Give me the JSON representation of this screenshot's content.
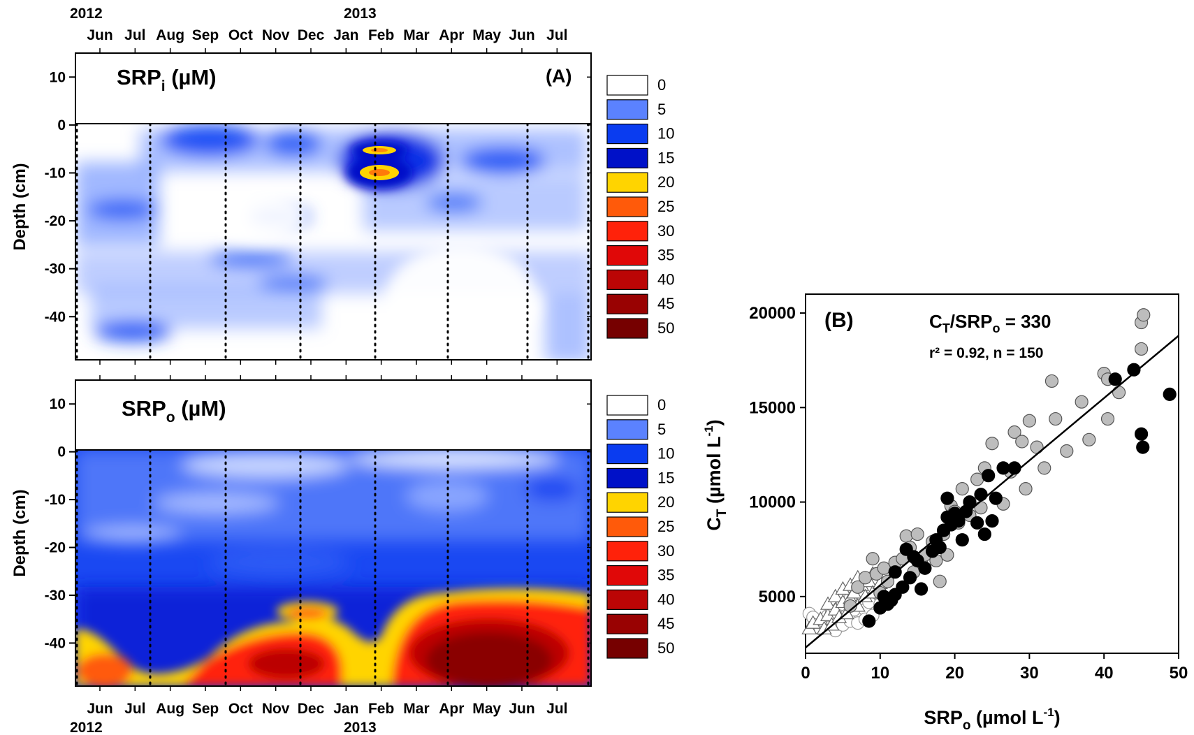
{
  "chart_data": [
    {
      "type": "heatmap",
      "panel": "(A)",
      "title_main": "SRP",
      "title_sub": "i",
      "title_tail": " (µM)",
      "panel_label": "(A)",
      "ylabel": "Depth (cm)",
      "ylim": [
        -49,
        15
      ],
      "yticks": [
        10,
        0,
        -10,
        -20,
        -30,
        -40
      ],
      "top_year_labels": [
        "2012",
        "2013"
      ],
      "months": [
        "Jun",
        "Jul",
        "Aug",
        "Sep",
        "Oct",
        "Nov",
        "Dec",
        "Jan",
        "Feb",
        "Mar",
        "Apr",
        "May",
        "Jun",
        "Jul"
      ],
      "sampling_dates_index": [
        0,
        2,
        4,
        6,
        8,
        10,
        12,
        13.5
      ],
      "colorbar": {
        "levels": [
          0,
          5,
          10,
          15,
          20,
          25,
          30,
          35,
          40,
          45,
          50
        ],
        "colors": [
          "#ffffff",
          "#5b82ff",
          "#0a3cf0",
          "#0011c8",
          "#ffd400",
          "#ff5a0a",
          "#ff220a",
          "#e00808",
          "#bb0505",
          "#990202",
          "#760000"
        ]
      },
      "features": [
        {
          "description_value_uM": 22,
          "date": "Jan 2013",
          "depth_cm": -5
        },
        {
          "description_value_uM": 20,
          "date": "Jan 2013",
          "depth_cm": -10
        }
      ]
    },
    {
      "type": "heatmap",
      "panel": "SRPo",
      "title_main": "SRP",
      "title_sub": "o",
      "title_tail": " (µM)",
      "ylabel": "Depth (cm)",
      "ylim": [
        -49,
        15
      ],
      "yticks": [
        10,
        0,
        -10,
        -20,
        -30,
        -40
      ],
      "bottom_year_labels": [
        "2012",
        "2013"
      ],
      "months": [
        "Jun",
        "Jul",
        "Aug",
        "Sep",
        "Oct",
        "Nov",
        "Dec",
        "Jan",
        "Feb",
        "Mar",
        "Apr",
        "May",
        "Jun",
        "Jul"
      ],
      "colorbar": {
        "levels": [
          0,
          5,
          10,
          15,
          20,
          25,
          30,
          35,
          40,
          45,
          50
        ],
        "colors": [
          "#ffffff",
          "#5b82ff",
          "#0a3cf0",
          "#0011c8",
          "#ffd400",
          "#ff5a0a",
          "#ff220a",
          "#e00808",
          "#bb0505",
          "#990202",
          "#760000"
        ]
      }
    },
    {
      "type": "scatter",
      "panel_label": "(B)",
      "equation_main": "C",
      "equation_sub1": "T",
      "equation_mid": "/SRP",
      "equation_sub2": "o",
      "equation_tail": " = 330",
      "stats": "r² = 0.92, n = 150",
      "xlabel_main": "SRP",
      "xlabel_sub": "o",
      "xlabel_tail": " (µmol L",
      "xlabel_sup": "-1",
      "xlabel_close": ")",
      "ylabel_main": "C",
      "ylabel_sub": "T",
      "ylabel_tail": " (µmol L",
      "ylabel_sup": "-1",
      "ylabel_close": ")",
      "xlim": [
        0,
        50
      ],
      "ylim": [
        2000,
        21000
      ],
      "xticks": [
        0,
        10,
        20,
        30,
        40,
        50
      ],
      "yticks": [
        5000,
        10000,
        15000,
        20000
      ],
      "fit_line": {
        "slope": 330,
        "intercept": 2300,
        "x_range": [
          0,
          50
        ]
      },
      "series": [
        {
          "marker": "circle-black",
          "points": [
            [
              8.5,
              3700
            ],
            [
              10,
              4400
            ],
            [
              10.5,
              5000
            ],
            [
              11,
              4600
            ],
            [
              11.5,
              4800
            ],
            [
              12,
              5100
            ],
            [
              12,
              6300
            ],
            [
              13,
              5500
            ],
            [
              13.5,
              7500
            ],
            [
              14,
              6000
            ],
            [
              14.5,
              7100
            ],
            [
              15,
              6900
            ],
            [
              15.5,
              5400
            ],
            [
              16,
              6500
            ],
            [
              17,
              7400
            ],
            [
              17.5,
              8000
            ],
            [
              18,
              7600
            ],
            [
              18.5,
              8500
            ],
            [
              19,
              9200
            ],
            [
              19,
              10200
            ],
            [
              19.5,
              8800
            ],
            [
              20,
              9400
            ],
            [
              20.5,
              9000
            ],
            [
              21,
              8000
            ],
            [
              21.5,
              9500
            ],
            [
              22,
              10000
            ],
            [
              23,
              8900
            ],
            [
              23.5,
              10400
            ],
            [
              24,
              8300
            ],
            [
              24.5,
              11400
            ],
            [
              25,
              9000
            ],
            [
              25.5,
              10200
            ],
            [
              26.5,
              11800
            ],
            [
              28,
              11800
            ],
            [
              41.5,
              16500
            ],
            [
              44,
              17000
            ],
            [
              45,
              13600
            ],
            [
              45.2,
              12900
            ],
            [
              48.8,
              15700
            ]
          ]
        },
        {
          "marker": "circle-gray",
          "points": [
            [
              6,
              4500
            ],
            [
              7,
              5500
            ],
            [
              8,
              6000
            ],
            [
              9,
              7000
            ],
            [
              9.5,
              6200
            ],
            [
              10,
              5200
            ],
            [
              10.5,
              6500
            ],
            [
              11,
              5800
            ],
            [
              12,
              6800
            ],
            [
              13,
              7000
            ],
            [
              13.5,
              8200
            ],
            [
              14,
              7600
            ],
            [
              14.5,
              6300
            ],
            [
              15,
              8300
            ],
            [
              15.5,
              6800
            ],
            [
              16,
              7200
            ],
            [
              17,
              7900
            ],
            [
              17.5,
              6900
            ],
            [
              18,
              5800
            ],
            [
              18.5,
              8300
            ],
            [
              19,
              7200
            ],
            [
              19.5,
              9800
            ],
            [
              20,
              9500
            ],
            [
              20.5,
              8900
            ],
            [
              21,
              10700
            ],
            [
              22,
              9300
            ],
            [
              23,
              11200
            ],
            [
              23.5,
              9700
            ],
            [
              24,
              11800
            ],
            [
              25,
              13100
            ],
            [
              26.5,
              9900
            ],
            [
              27.5,
              11600
            ],
            [
              28,
              13700
            ],
            [
              29,
              13200
            ],
            [
              29.5,
              10700
            ],
            [
              30,
              14300
            ],
            [
              31,
              12900
            ],
            [
              32,
              11800
            ],
            [
              33,
              16400
            ],
            [
              33.5,
              14400
            ],
            [
              35,
              12700
            ],
            [
              37,
              15300
            ],
            [
              38,
              13300
            ],
            [
              40,
              16800
            ],
            [
              40.5,
              16500
            ],
            [
              40.5,
              14400
            ],
            [
              42,
              15800
            ],
            [
              45,
              18100
            ],
            [
              45,
              19500
            ],
            [
              45.3,
              19900
            ]
          ]
        },
        {
          "marker": "circle-white",
          "points": [
            [
              0.5,
              4100
            ],
            [
              1,
              3900
            ],
            [
              1.5,
              3500
            ],
            [
              2,
              3300
            ],
            [
              2.5,
              3700
            ],
            [
              3,
              3600
            ],
            [
              3,
              4000
            ],
            [
              3.5,
              4200
            ],
            [
              4,
              3200
            ],
            [
              4,
              3800
            ],
            [
              4.5,
              4400
            ],
            [
              5,
              3500
            ],
            [
              5,
              4600
            ],
            [
              5.5,
              4000
            ],
            [
              6,
              3700
            ],
            [
              6,
              4900
            ],
            [
              6.5,
              4300
            ],
            [
              7,
              3600
            ],
            [
              7.5,
              5100
            ],
            [
              8,
              4300
            ],
            [
              8,
              3800
            ],
            [
              8.5,
              4700
            ],
            [
              9,
              4000
            ],
            [
              9.5,
              5200
            ],
            [
              10,
              4600
            ]
          ]
        },
        {
          "marker": "triangle-white",
          "points": [
            [
              0.5,
              3300
            ],
            [
              1,
              3600
            ],
            [
              2,
              3800
            ],
            [
              2.5,
              3300
            ],
            [
              3,
              4000
            ],
            [
              3,
              4600
            ],
            [
              3.5,
              3500
            ],
            [
              4,
              4300
            ],
            [
              4,
              5000
            ],
            [
              4.5,
              3900
            ],
            [
              5,
              4700
            ],
            [
              5,
              5400
            ],
            [
              5.5,
              4100
            ],
            [
              6,
              4900
            ],
            [
              6,
              5600
            ],
            [
              6.5,
              5200
            ],
            [
              7,
              4500
            ],
            [
              7,
              6000
            ],
            [
              7.5,
              5600
            ],
            [
              8,
              5000
            ],
            [
              8.5,
              5800
            ],
            [
              9,
              6200
            ],
            [
              9,
              5200
            ],
            [
              10,
              5700
            ]
          ]
        }
      ]
    }
  ]
}
